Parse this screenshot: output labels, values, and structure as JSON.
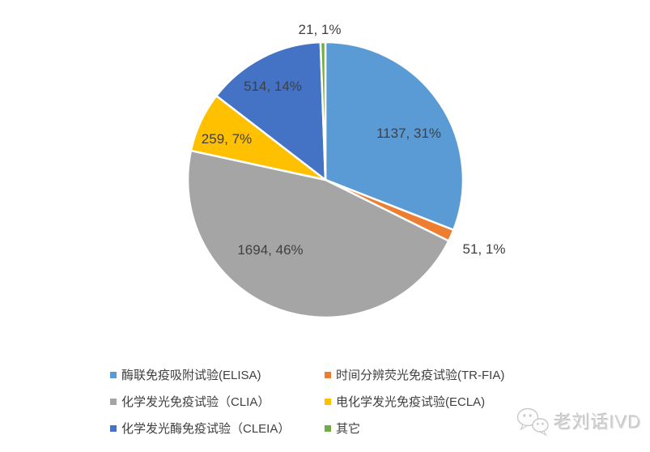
{
  "chart_data": {
    "type": "pie",
    "title": "",
    "label_format": "value, percent",
    "direction": "clockwise",
    "start_angle_deg": 0,
    "legend_position": "bottom",
    "legend_columns": 2,
    "slices": [
      {
        "key": "elisa",
        "label": "酶联免疫吸附试验(ELISA)",
        "value": 1137,
        "percent": "31%",
        "color": "#5B9BD5",
        "data_label": "1137, 31%",
        "label_placement": "inside",
        "label_xy": [
          505,
          164
        ]
      },
      {
        "key": "tr-fia",
        "label": "时间分辨荧光免疫试验(TR-FIA)",
        "value": 51,
        "percent": "1%",
        "color": "#ED7D31",
        "data_label": "51, 1%",
        "label_placement": "outside",
        "label_xy": [
          598,
          307
        ]
      },
      {
        "key": "clia",
        "label": "化学发光免疫试验（CLIA）",
        "value": 1694,
        "percent": "46%",
        "color": "#A5A5A5",
        "data_label": "1694, 46%",
        "label_placement": "inside",
        "label_xy": [
          334,
          308
        ]
      },
      {
        "key": "ecla",
        "label": "电化学发光免疫试验(ECLA)",
        "value": 259,
        "percent": "7%",
        "color": "#FFC000",
        "data_label": "259, 7%",
        "label_placement": "inside",
        "label_xy": [
          280,
          171
        ]
      },
      {
        "key": "cleia",
        "label": "化学发光酶免疫试验（CLEIA）",
        "value": 514,
        "percent": "14%",
        "color": "#4472C4",
        "data_label": "514, 14%",
        "label_placement": "inside",
        "label_xy": [
          337,
          106
        ]
      },
      {
        "key": "other",
        "label": "其它",
        "value": 21,
        "percent": "1%",
        "color": "#70AD47",
        "data_label": "21, 1%",
        "label_placement": "outside",
        "label_xy": [
          395,
          36
        ]
      }
    ]
  },
  "watermark": {
    "text": "老刘话IVD",
    "icon": "wechat-icon"
  },
  "colors": {
    "background": "#FFFFFF",
    "data_label_text": "#404040",
    "legend_text": "#404040",
    "slice_border": "#FFFFFF",
    "watermark_text": "#D8D8D8"
  }
}
